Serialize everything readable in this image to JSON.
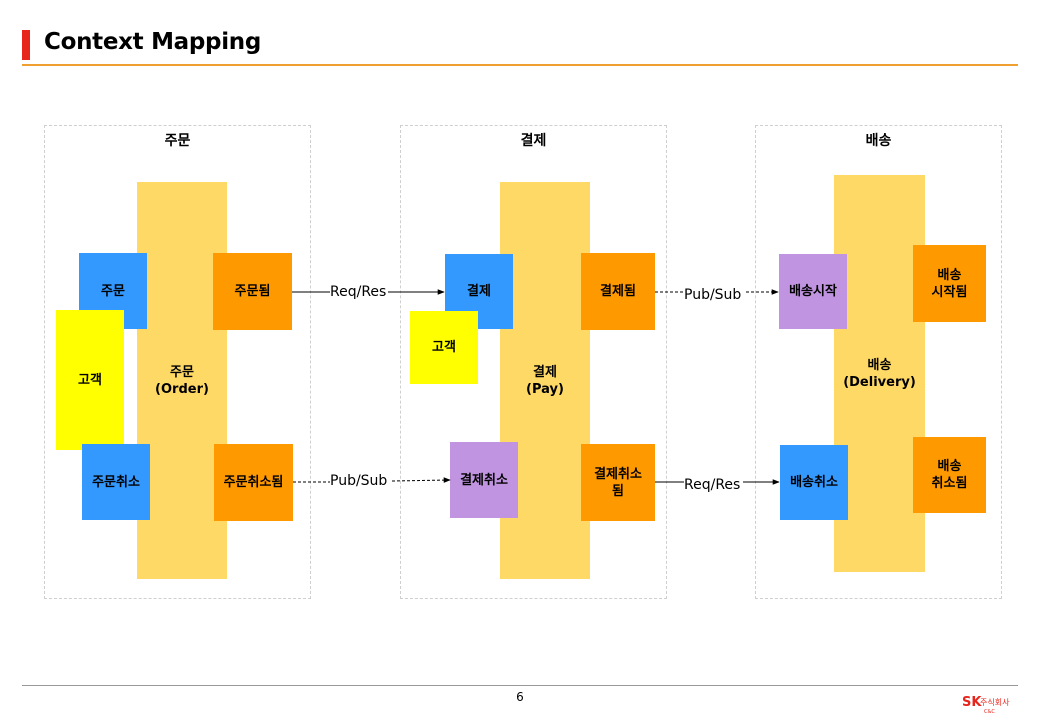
{
  "slide": {
    "title": "Context Mapping",
    "page_number": "6",
    "logo": {
      "brand": "SK",
      "sub": "주식회사",
      "sub2": "C&C"
    }
  },
  "contexts": {
    "order": {
      "label": "주문",
      "aggregate": {
        "name": "주문",
        "en": "(Order)"
      },
      "command_order": "주문",
      "event_ordered": "주문됨",
      "actor": "고객",
      "command_cancel": "주문취소",
      "event_cancelled": "주문취소됨"
    },
    "pay": {
      "label": "결제",
      "aggregate": {
        "name": "결제",
        "en": "(Pay)"
      },
      "command_pay": "결제",
      "event_paid": "결제됨",
      "actor": "고객",
      "policy_cancel": "결제취소",
      "event_cancelled_line1": "결제취소",
      "event_cancelled_line2": "됨"
    },
    "delivery": {
      "label": "배송",
      "aggregate": {
        "name": "배송",
        "en": "(Delivery)"
      },
      "policy_start": "배송시작",
      "event_started_line1": "배송",
      "event_started_line2": "시작됨",
      "command_cancel": "배송취소",
      "event_cancelled_line1": "배송",
      "event_cancelled_line2": "취소됨"
    }
  },
  "connections": {
    "order_to_pay_top": "Req/Res",
    "order_to_pay_bottom": "Pub/Sub",
    "pay_to_delivery_top": "Pub/Sub",
    "pay_to_delivery_bottom": "Req/Res"
  }
}
